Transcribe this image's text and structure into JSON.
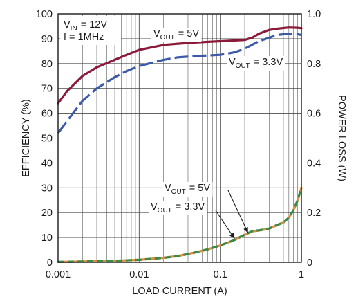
{
  "chart_data": {
    "type": "line",
    "x_scale": "log",
    "xlim": [
      0.001,
      1
    ],
    "ylim_left": [
      0,
      100
    ],
    "ylim_right": [
      0,
      1.0
    ],
    "grid": true,
    "xlabel": "LOAD CURRENT (A)",
    "ylabel_left": "EFFICIENCY (%)",
    "ylabel_right": "POWER LOSS (W)",
    "x_ticks": [
      "0.001",
      "0.01",
      "0.1",
      "1"
    ],
    "y_ticks_left": [
      "0",
      "10",
      "20",
      "30",
      "40",
      "50",
      "60",
      "70",
      "80",
      "90",
      "100"
    ],
    "y_ticks_right": [
      "0",
      "0.2",
      "0.4",
      "0.6",
      "0.8",
      "1.0"
    ],
    "conditions": [
      {
        "main": "V",
        "sub": "IN",
        "rest": " = 12V"
      },
      {
        "main": "f = 1MHz",
        "sub": "",
        "rest": ""
      }
    ],
    "series": [
      {
        "label": {
          "main": "V",
          "sub": "OUT",
          "rest": " = 5V"
        },
        "axis": "left",
        "style": "solid",
        "color": "#8b1a3a",
        "x": [
          0.001,
          0.0013,
          0.002,
          0.003,
          0.005,
          0.007,
          0.01,
          0.02,
          0.03,
          0.05,
          0.1,
          0.2,
          0.25,
          0.3,
          0.4,
          0.5,
          0.7,
          0.9,
          1.0
        ],
        "y": [
          64,
          69,
          75,
          78.5,
          81.5,
          83.5,
          85.5,
          87.5,
          88,
          88.5,
          89,
          89.5,
          90.5,
          92,
          93.5,
          94,
          94.5,
          94.4,
          94.2
        ]
      },
      {
        "label": {
          "main": "V",
          "sub": "OUT",
          "rest": " = 3.3V"
        },
        "axis": "left",
        "style": "dashed",
        "color": "#3a5aa8",
        "x": [
          0.001,
          0.0013,
          0.002,
          0.003,
          0.005,
          0.007,
          0.01,
          0.02,
          0.03,
          0.05,
          0.1,
          0.15,
          0.2,
          0.3,
          0.5,
          0.7,
          0.9,
          1.0
        ],
        "y": [
          52,
          57,
          65,
          70,
          74.5,
          77,
          79,
          81.5,
          82.5,
          83,
          83.5,
          84.5,
          86,
          89,
          91.5,
          92,
          91.8,
          91.5
        ]
      },
      {
        "label": {
          "main": "V",
          "sub": "OUT",
          "rest": " = 5V"
        },
        "axis": "right",
        "style": "solid",
        "color": "#e08a3c",
        "x": [
          0.001,
          0.002,
          0.005,
          0.01,
          0.02,
          0.03,
          0.05,
          0.07,
          0.1,
          0.15,
          0.2,
          0.25,
          0.3,
          0.4,
          0.5,
          0.6,
          0.7,
          0.8,
          0.9,
          1.0
        ],
        "y": [
          0.002,
          0.003,
          0.006,
          0.01,
          0.018,
          0.025,
          0.04,
          0.052,
          0.068,
          0.09,
          0.11,
          0.125,
          0.128,
          0.135,
          0.15,
          0.16,
          0.18,
          0.21,
          0.25,
          0.3
        ]
      },
      {
        "label": {
          "main": "V",
          "sub": "OUT",
          "rest": " = 3.3V"
        },
        "axis": "right",
        "style": "dashed",
        "color": "#3a8a4a",
        "x": [
          0.001,
          0.002,
          0.005,
          0.01,
          0.02,
          0.03,
          0.05,
          0.07,
          0.1,
          0.15,
          0.2,
          0.25,
          0.3,
          0.4,
          0.5,
          0.6,
          0.7,
          0.8,
          0.9,
          1.0
        ],
        "y": [
          0.002,
          0.003,
          0.006,
          0.01,
          0.018,
          0.025,
          0.04,
          0.052,
          0.068,
          0.09,
          0.112,
          0.126,
          0.129,
          0.136,
          0.15,
          0.16,
          0.18,
          0.21,
          0.25,
          0.3
        ]
      }
    ],
    "annotations": [
      {
        "series": 0,
        "arrow": false
      },
      {
        "series": 1,
        "arrow": false
      },
      {
        "series": 2,
        "arrow": true,
        "target": [
          0.22,
          0.118
        ]
      },
      {
        "series": 3,
        "arrow": true,
        "target": [
          0.15,
          0.095
        ]
      }
    ]
  }
}
